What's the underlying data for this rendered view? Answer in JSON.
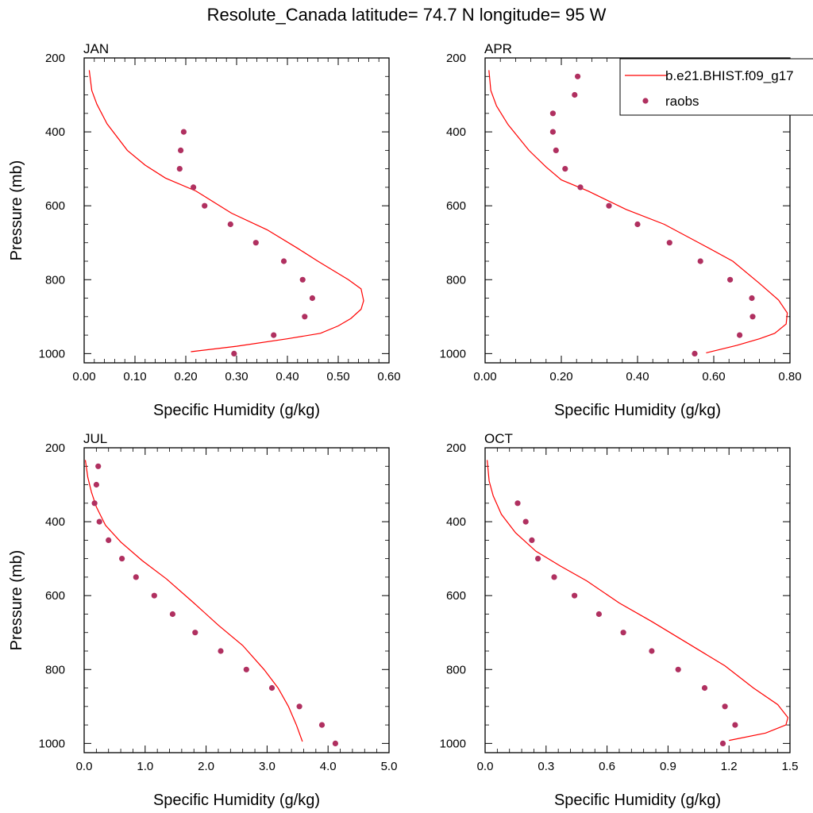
{
  "title": "Resolute_Canada  latitude= 74.7 N longitude= 95 W",
  "legend": {
    "model_label": "b.e21.BHIST.f09_g17",
    "obs_label": "raobs",
    "placement": "top-right"
  },
  "colors": {
    "model": "#ff0000",
    "obs": "#b03060",
    "axis": "#000000",
    "background": "#ffffff"
  },
  "chart_data": [
    {
      "type": "line",
      "panel": "JAN",
      "xlabel": "Specific Humidity (g/kg)",
      "ylabel": "Pressure (mb)",
      "xlim": [
        0,
        0.6
      ],
      "ylim": [
        1025,
        200
      ],
      "y_reversed": true,
      "xticks": [
        "0.00",
        "0.10",
        "0.20",
        "0.30",
        "0.40",
        "0.50",
        "0.60"
      ],
      "yticks": [
        "200",
        "400",
        "600",
        "800",
        "1000"
      ],
      "series": [
        {
          "name": "b.e21.BHIST.f09_g17",
          "style": "line",
          "points": [
            [
              0.01,
              233
            ],
            [
              0.015,
              288
            ],
            [
              0.025,
              325
            ],
            [
              0.045,
              378
            ],
            [
              0.085,
              450
            ],
            [
              0.12,
              490
            ],
            [
              0.16,
              525
            ],
            [
              0.22,
              560
            ],
            [
              0.29,
              620
            ],
            [
              0.36,
              665
            ],
            [
              0.42,
              715
            ],
            [
              0.46,
              750
            ],
            [
              0.49,
              775
            ],
            [
              0.52,
              800
            ],
            [
              0.545,
              825
            ],
            [
              0.55,
              857
            ],
            [
              0.545,
              880
            ],
            [
              0.525,
              905
            ],
            [
              0.5,
              925
            ],
            [
              0.465,
              945
            ],
            [
              0.4,
              960
            ],
            [
              0.3,
              980
            ],
            [
              0.21,
              995
            ]
          ]
        },
        {
          "name": "raobs",
          "style": "points",
          "points": [
            [
              0.196,
              400
            ],
            [
              0.19,
              450
            ],
            [
              0.188,
              500
            ],
            [
              0.215,
              550
            ],
            [
              0.237,
              600
            ],
            [
              0.288,
              650
            ],
            [
              0.338,
              700
            ],
            [
              0.393,
              750
            ],
            [
              0.43,
              800
            ],
            [
              0.449,
              850
            ],
            [
              0.434,
              900
            ],
            [
              0.373,
              950
            ],
            [
              0.295,
              1000
            ]
          ]
        }
      ]
    },
    {
      "type": "line",
      "panel": "APR",
      "xlabel": "Specific Humidity (g/kg)",
      "ylabel": "",
      "xlim": [
        0,
        0.8
      ],
      "ylim": [
        1025,
        200
      ],
      "y_reversed": true,
      "xticks": [
        "0.00",
        "0.20",
        "0.40",
        "0.60",
        "0.80"
      ],
      "yticks": [
        "200",
        "400",
        "600",
        "800",
        "1000"
      ],
      "series": [
        {
          "name": "b.e21.BHIST.f09_g17",
          "style": "line",
          "points": [
            [
              0.01,
              233
            ],
            [
              0.015,
              288
            ],
            [
              0.03,
              330
            ],
            [
              0.06,
              380
            ],
            [
              0.115,
              450
            ],
            [
              0.16,
              495
            ],
            [
              0.2,
              530
            ],
            [
              0.27,
              560
            ],
            [
              0.37,
              610
            ],
            [
              0.47,
              650
            ],
            [
              0.57,
              705
            ],
            [
              0.65,
              750
            ],
            [
              0.72,
              810
            ],
            [
              0.77,
              855
            ],
            [
              0.793,
              890
            ],
            [
              0.79,
              920
            ],
            [
              0.76,
              945
            ],
            [
              0.72,
              960
            ],
            [
              0.66,
              978
            ],
            [
              0.58,
              998
            ]
          ]
        },
        {
          "name": "raobs",
          "style": "points",
          "points": [
            [
              0.243,
              250
            ],
            [
              0.235,
              300
            ],
            [
              0.178,
              350
            ],
            [
              0.178,
              400
            ],
            [
              0.186,
              450
            ],
            [
              0.21,
              500
            ],
            [
              0.25,
              550
            ],
            [
              0.325,
              600
            ],
            [
              0.4,
              650
            ],
            [
              0.484,
              700
            ],
            [
              0.565,
              750
            ],
            [
              0.643,
              800
            ],
            [
              0.7,
              850
            ],
            [
              0.702,
              900
            ],
            [
              0.668,
              950
            ],
            [
              0.55,
              1000
            ]
          ]
        }
      ]
    },
    {
      "type": "line",
      "panel": "JUL",
      "xlabel": "Specific Humidity (g/kg)",
      "ylabel": "Pressure (mb)",
      "xlim": [
        0,
        5.0
      ],
      "ylim": [
        1025,
        200
      ],
      "y_reversed": true,
      "xticks": [
        "0.0",
        "1.0",
        "2.0",
        "3.0",
        "4.0",
        "5.0"
      ],
      "yticks": [
        "200",
        "400",
        "600",
        "800",
        "1000"
      ],
      "series": [
        {
          "name": "b.e21.BHIST.f09_g17",
          "style": "line",
          "points": [
            [
              0.02,
              233
            ],
            [
              0.06,
              280
            ],
            [
              0.12,
              320
            ],
            [
              0.2,
              360
            ],
            [
              0.35,
              410
            ],
            [
              0.6,
              455
            ],
            [
              0.95,
              505
            ],
            [
              1.35,
              555
            ],
            [
              1.8,
              620
            ],
            [
              2.2,
              680
            ],
            [
              2.6,
              735
            ],
            [
              2.95,
              800
            ],
            [
              3.18,
              850
            ],
            [
              3.35,
              900
            ],
            [
              3.48,
              950
            ],
            [
              3.58,
              995
            ]
          ]
        },
        {
          "name": "raobs",
          "style": "points",
          "points": [
            [
              0.23,
              250
            ],
            [
              0.2,
              300
            ],
            [
              0.17,
              350
            ],
            [
              0.25,
              400
            ],
            [
              0.4,
              450
            ],
            [
              0.62,
              500
            ],
            [
              0.85,
              550
            ],
            [
              1.15,
              600
            ],
            [
              1.45,
              650
            ],
            [
              1.82,
              700
            ],
            [
              2.24,
              750
            ],
            [
              2.66,
              800
            ],
            [
              3.08,
              850
            ],
            [
              3.53,
              900
            ],
            [
              3.9,
              950
            ],
            [
              4.12,
              1000
            ]
          ]
        }
      ]
    },
    {
      "type": "line",
      "panel": "OCT",
      "xlabel": "Specific Humidity (g/kg)",
      "ylabel": "",
      "xlim": [
        0,
        1.5
      ],
      "ylim": [
        1025,
        200
      ],
      "y_reversed": true,
      "xticks": [
        "0.0",
        "0.3",
        "0.6",
        "0.9",
        "1.2",
        "1.5"
      ],
      "yticks": [
        "200",
        "400",
        "600",
        "800",
        "1000"
      ],
      "series": [
        {
          "name": "b.e21.BHIST.f09_g17",
          "style": "line",
          "points": [
            [
              0.01,
              233
            ],
            [
              0.02,
              290
            ],
            [
              0.04,
              330
            ],
            [
              0.08,
              380
            ],
            [
              0.15,
              430
            ],
            [
              0.25,
              480
            ],
            [
              0.37,
              520
            ],
            [
              0.5,
              560
            ],
            [
              0.66,
              620
            ],
            [
              0.82,
              670
            ],
            [
              1.0,
              730
            ],
            [
              1.18,
              790
            ],
            [
              1.32,
              850
            ],
            [
              1.44,
              895
            ],
            [
              1.49,
              930
            ],
            [
              1.48,
              950
            ],
            [
              1.38,
              972
            ],
            [
              1.2,
              992
            ]
          ]
        },
        {
          "name": "raobs",
          "style": "points",
          "points": [
            [
              0.16,
              350
            ],
            [
              0.2,
              400
            ],
            [
              0.23,
              450
            ],
            [
              0.26,
              500
            ],
            [
              0.34,
              550
            ],
            [
              0.44,
              600
            ],
            [
              0.56,
              650
            ],
            [
              0.68,
              700
            ],
            [
              0.82,
              750
            ],
            [
              0.95,
              800
            ],
            [
              1.08,
              850
            ],
            [
              1.18,
              900
            ],
            [
              1.23,
              950
            ],
            [
              1.17,
              1000
            ]
          ]
        }
      ]
    }
  ]
}
